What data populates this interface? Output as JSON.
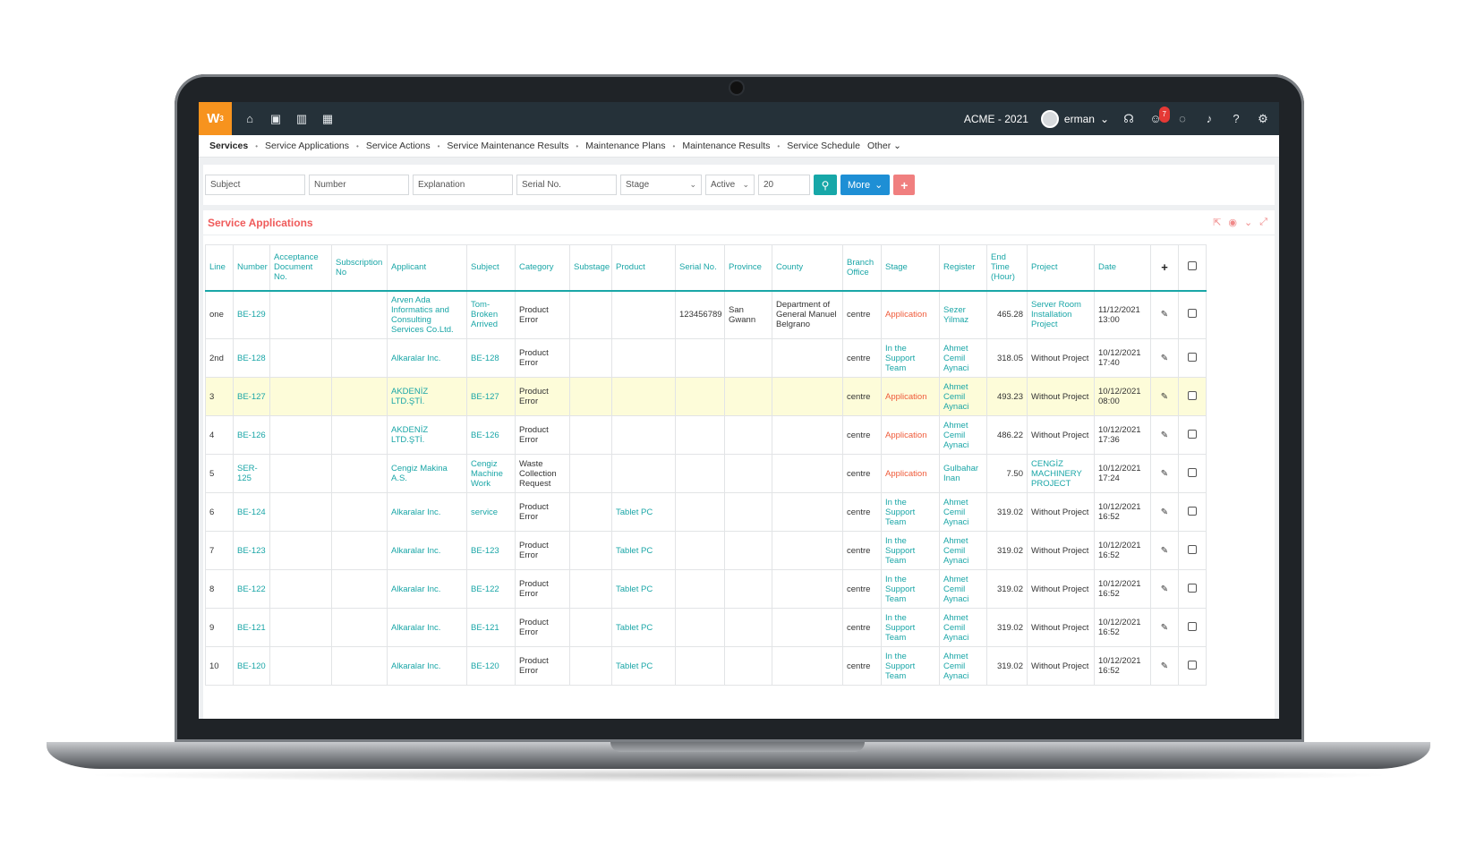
{
  "topbar": {
    "logo": "W",
    "logo_sup": "3",
    "company": "ACME - 2021",
    "user": "erman",
    "notification_count": "7"
  },
  "subnav": {
    "items": [
      "Services",
      "Service Applications",
      "Service Actions",
      "Service Maintenance Results",
      "Maintenance Plans",
      "Maintenance Results",
      "Service Schedule"
    ],
    "other": "Other"
  },
  "filters": {
    "subject": "Subject",
    "number": "Number",
    "explanation": "Explanation",
    "serial": "Serial No.",
    "stage": "Stage",
    "status": "Active",
    "page_size": "20",
    "more": "More"
  },
  "panel": {
    "title": "Service Applications"
  },
  "table": {
    "headers": [
      "Line",
      "Number",
      "Acceptance Document No.",
      "Subscription No",
      "Applicant",
      "Subject",
      "Category",
      "Substage",
      "Product",
      "Serial No.",
      "Province",
      "County",
      "Branch Office",
      "Stage",
      "Register",
      "End Time (Hour)",
      "Project",
      "Date",
      "+",
      ""
    ],
    "rows": [
      {
        "line": "one",
        "number": "BE-129",
        "acceptance": "",
        "subscription": "",
        "applicant": "Arven Ada Informatics and Consulting Services Co.Ltd.",
        "subject": "Tom-Broken Arrived",
        "category": "Product Error",
        "substage": "",
        "product": "",
        "serial": "123456789",
        "province": "San Gwann",
        "county": "Department of General Manuel Belgrano",
        "branch": "centre",
        "stage": "Application",
        "register": "Sezer Yilmaz",
        "end_time": "465.28",
        "project": "Server Room Installation Project",
        "date": "11/12/2021 13:00"
      },
      {
        "line": "2nd",
        "number": "BE-128",
        "acceptance": "",
        "subscription": "",
        "applicant": "Alkaralar Inc.",
        "subject": "BE-128",
        "category": "Product Error",
        "substage": "",
        "product": "",
        "serial": "",
        "province": "",
        "county": "",
        "branch": "centre",
        "stage": "In the Support Team",
        "register": "Ahmet Cemil Aynaci",
        "end_time": "318.05",
        "project": "Without Project",
        "date": "10/12/2021 17:40"
      },
      {
        "line": "3",
        "number": "BE-127",
        "acceptance": "",
        "subscription": "",
        "applicant": "AKDENİZ LTD.ŞTİ.",
        "subject": "BE-127",
        "category": "Product Error",
        "substage": "",
        "product": "",
        "serial": "",
        "province": "",
        "county": "",
        "branch": "centre",
        "stage": "Application",
        "register": "Ahmet Cemil Aynaci",
        "end_time": "493.23",
        "project": "Without Project",
        "date": "10/12/2021 08:00"
      },
      {
        "line": "4",
        "number": "BE-126",
        "acceptance": "",
        "subscription": "",
        "applicant": "AKDENİZ LTD.ŞTİ.",
        "subject": "BE-126",
        "category": "Product Error",
        "substage": "",
        "product": "",
        "serial": "",
        "province": "",
        "county": "",
        "branch": "centre",
        "stage": "Application",
        "register": "Ahmet Cemil Aynaci",
        "end_time": "486.22",
        "project": "Without Project",
        "date": "10/12/2021 17:36"
      },
      {
        "line": "5",
        "number": "SER-125",
        "acceptance": "",
        "subscription": "",
        "applicant": "Cengiz Makina A.S.",
        "subject": "Cengiz Machine Work",
        "category": "Waste Collection Request",
        "substage": "",
        "product": "",
        "serial": "",
        "province": "",
        "county": "",
        "branch": "centre",
        "stage": "Application",
        "register": "Gulbahar Inan",
        "end_time": "7.50",
        "project": "CENGİZ MACHINERY PROJECT",
        "date": "10/12/2021 17:24"
      },
      {
        "line": "6",
        "number": "BE-124",
        "acceptance": "",
        "subscription": "",
        "applicant": "Alkaralar Inc.",
        "subject": "service",
        "category": "Product Error",
        "substage": "",
        "product": "Tablet PC",
        "serial": "",
        "province": "",
        "county": "",
        "branch": "centre",
        "stage": "In the Support Team",
        "register": "Ahmet Cemil Aynaci",
        "end_time": "319.02",
        "project": "Without Project",
        "date": "10/12/2021 16:52"
      },
      {
        "line": "7",
        "number": "BE-123",
        "acceptance": "",
        "subscription": "",
        "applicant": "Alkaralar Inc.",
        "subject": "BE-123",
        "category": "Product Error",
        "substage": "",
        "product": "Tablet PC",
        "serial": "",
        "province": "",
        "county": "",
        "branch": "centre",
        "stage": "In the Support Team",
        "register": "Ahmet Cemil Aynaci",
        "end_time": "319.02",
        "project": "Without Project",
        "date": "10/12/2021 16:52"
      },
      {
        "line": "8",
        "number": "BE-122",
        "acceptance": "",
        "subscription": "",
        "applicant": "Alkaralar Inc.",
        "subject": "BE-122",
        "category": "Product Error",
        "substage": "",
        "product": "Tablet PC",
        "serial": "",
        "province": "",
        "county": "",
        "branch": "centre",
        "stage": "In the Support Team",
        "register": "Ahmet Cemil Aynaci",
        "end_time": "319.02",
        "project": "Without Project",
        "date": "10/12/2021 16:52"
      },
      {
        "line": "9",
        "number": "BE-121",
        "acceptance": "",
        "subscription": "",
        "applicant": "Alkaralar Inc.",
        "subject": "BE-121",
        "category": "Product Error",
        "substage": "",
        "product": "Tablet PC",
        "serial": "",
        "province": "",
        "county": "",
        "branch": "centre",
        "stage": "In the Support Team",
        "register": "Ahmet Cemil Aynaci",
        "end_time": "319.02",
        "project": "Without Project",
        "date": "10/12/2021 16:52"
      },
      {
        "line": "10",
        "number": "BE-120",
        "acceptance": "",
        "subscription": "",
        "applicant": "Alkaralar Inc.",
        "subject": "BE-120",
        "category": "Product Error",
        "substage": "",
        "product": "Tablet PC",
        "serial": "",
        "province": "",
        "county": "",
        "branch": "centre",
        "stage": "In the Support Team",
        "register": "Ahmet Cemil Aynaci",
        "end_time": "319.02",
        "project": "Without Project",
        "date": "10/12/2021 16:52"
      }
    ],
    "highlight_row": 2
  },
  "colors": {
    "accent": "#1aa6a7",
    "brand": "#f7931e",
    "alert": "#ef5b3a",
    "topbar": "#253139",
    "highlight": "#fdfcd9"
  },
  "icons": [
    "home-icon",
    "box-icon",
    "chart-icon",
    "calendar-icon",
    "headset-icon",
    "smiley-icon",
    "chat-icon",
    "bell-icon",
    "help-icon",
    "gear-icon",
    "search-icon",
    "plus-icon",
    "export-icon",
    "eye-icon",
    "collapse-icon",
    "expand-icon",
    "pencil-icon",
    "checkbox-icon"
  ]
}
